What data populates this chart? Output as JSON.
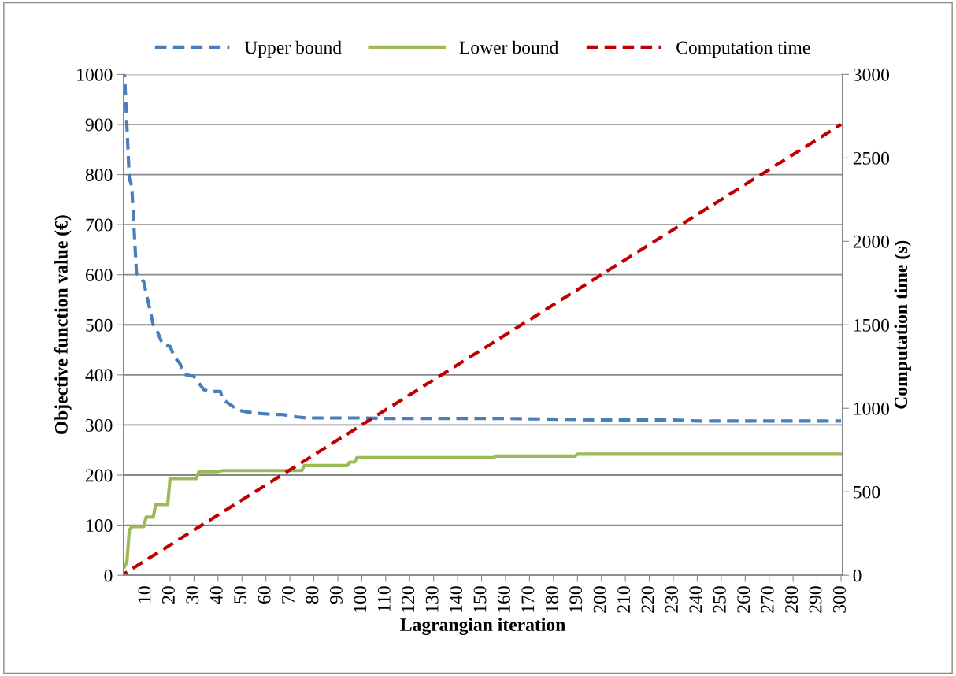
{
  "chart_data": {
    "type": "line",
    "xlabel": "Lagrangian iteration",
    "ylabel": "Objective function value (€)",
    "y2label": "Computation time (s)",
    "xlim": [
      0.5,
      300.5
    ],
    "xticks": [
      10,
      20,
      30,
      40,
      50,
      60,
      70,
      80,
      90,
      100,
      110,
      120,
      130,
      140,
      150,
      160,
      170,
      180,
      190,
      200,
      210,
      220,
      230,
      240,
      250,
      260,
      270,
      280,
      290,
      300
    ],
    "ylim": [
      0,
      1000
    ],
    "yticks": [
      0,
      100,
      200,
      300,
      400,
      500,
      600,
      700,
      800,
      900,
      1000
    ],
    "y2lim": [
      0,
      3000
    ],
    "y2ticks": [
      0,
      500,
      1000,
      1500,
      2000,
      2500,
      3000
    ],
    "grid": "y",
    "legend": "top",
    "series": [
      {
        "name": "Upper bound",
        "color": "#4a7ebb",
        "line_style": "dashed",
        "x": [
          1,
          3,
          4,
          6,
          9,
          13,
          15,
          17,
          20,
          22,
          24,
          26,
          30,
          34,
          36,
          41,
          42,
          48,
          50,
          55,
          63,
          67,
          73,
          77,
          100,
          110,
          160,
          190,
          200,
          230,
          240,
          300
        ],
        "values": [
          1000,
          792,
          778,
          603,
          586,
          500,
          483,
          460,
          457,
          434,
          424,
          401,
          397,
          371,
          367,
          367,
          351,
          331,
          328,
          324,
          321,
          321,
          316,
          314,
          314,
          313,
          313,
          311,
          310,
          310,
          308,
          308
        ]
      },
      {
        "name": "Lower bound",
        "color": "#9bbb59",
        "line_style": "solid",
        "x": [
          1,
          2,
          3,
          4,
          9,
          10,
          13,
          14,
          19,
          20,
          31,
          32,
          40,
          42,
          75,
          76,
          94,
          95,
          97,
          98,
          155,
          156,
          189,
          190,
          300
        ],
        "values": [
          17,
          27,
          90,
          97,
          97,
          116,
          116,
          141,
          141,
          193,
          193,
          207,
          207,
          209,
          209,
          219,
          219,
          226,
          226,
          235,
          235,
          238,
          238,
          242,
          242
        ]
      },
      {
        "name": "Computation time",
        "color": "#c00000",
        "line_style": "dashed",
        "axis": "y2",
        "x": [
          1,
          300
        ],
        "values": [
          10,
          2700
        ]
      }
    ]
  }
}
